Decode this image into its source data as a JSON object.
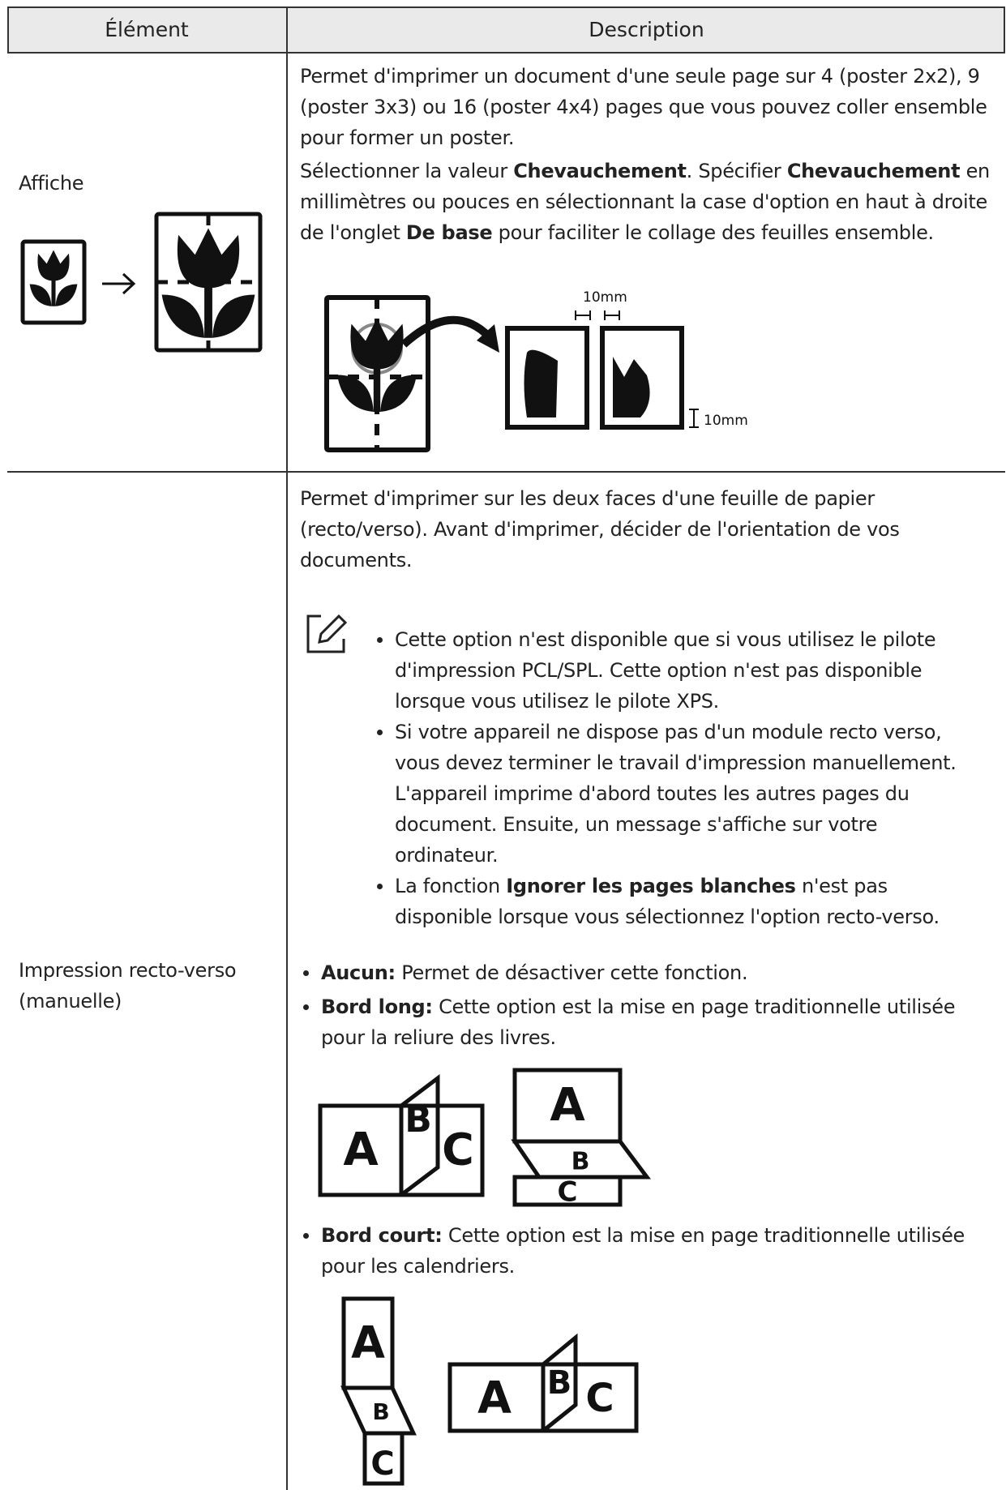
{
  "table": {
    "header": [
      "Élément",
      "Description"
    ],
    "rows": [
      {
        "element": "Affiche",
        "description": [
          [
            {
              "text": "Permet d'imprimer un document d'une seule page sur 4 (poster 2x2), 9 (poster 3x3) ou 16 (poster 4x4) pages que vous pouvez coller ensemble pour former un poster.",
              "bold": false
            }
          ],
          [
            {
              "text": "Sélectionner la valeur ",
              "bold": false
            },
            {
              "text": "Chevauchement",
              "bold": true
            },
            {
              "text": ". Spécifier ",
              "bold": false
            },
            {
              "text": "Chevauchement",
              "bold": true
            },
            {
              "text": " en millimètres ou pouces en sélectionnant la case d'option en haut à droite de l'onglet ",
              "bold": false
            },
            {
              "text": "De base",
              "bold": true
            },
            {
              "text": " pour faciliter le collage des feuilles ensemble.",
              "bold": false
            }
          ]
        ],
        "figure_labels": [
          "10mm",
          "10mm"
        ]
      },
      {
        "element": "Impression recto-verso (manuelle)",
        "description": [
          [
            {
              "text": "Permet d'imprimer sur les deux faces d'une feuille de papier (recto/verso). Avant d'imprimer, décider de l'orientation de vos documents.",
              "bold": false
            }
          ]
        ],
        "note": [
          [
            {
              "text": "Cette option n'est disponible que si vous utilisez le pilote d'impression PCL/SPL. Cette option n'est pas disponible lorsque vous utilisez le pilote XPS.",
              "bold": false
            }
          ],
          [
            {
              "text": "Si votre appareil ne dispose pas d'un module recto verso, vous devez terminer le travail d'impression manuellement. L'appareil imprime d'abord toutes les autres pages du document. Ensuite, un message s'affiche sur votre ordinateur.",
              "bold": false
            }
          ],
          [
            {
              "text": "La fonction ",
              "bold": false
            },
            {
              "text": "Ignorer les pages blanches",
              "bold": true
            },
            {
              "text": " n'est pas disponible lorsque vous sélectionnez l'option recto-verso.",
              "bold": false
            }
          ]
        ],
        "options": [
          {
            "name": "Aucun:",
            "text": " Permet de désactiver cette fonction."
          },
          {
            "name": "Bord long:",
            "text": " Cette option est la mise en page traditionnelle utilisée pour la reliure des livres."
          },
          {
            "name": "Bord court:",
            "text": " Cette option est la mise en page traditionnelle utilisée pour les calendriers."
          }
        ],
        "figures": {
          "long_edge": [
            "A",
            "B",
            "C",
            "A",
            "B",
            "C"
          ],
          "short_edge": [
            "A",
            "B",
            "C",
            "A",
            "B",
            "C"
          ]
        }
      }
    ]
  }
}
